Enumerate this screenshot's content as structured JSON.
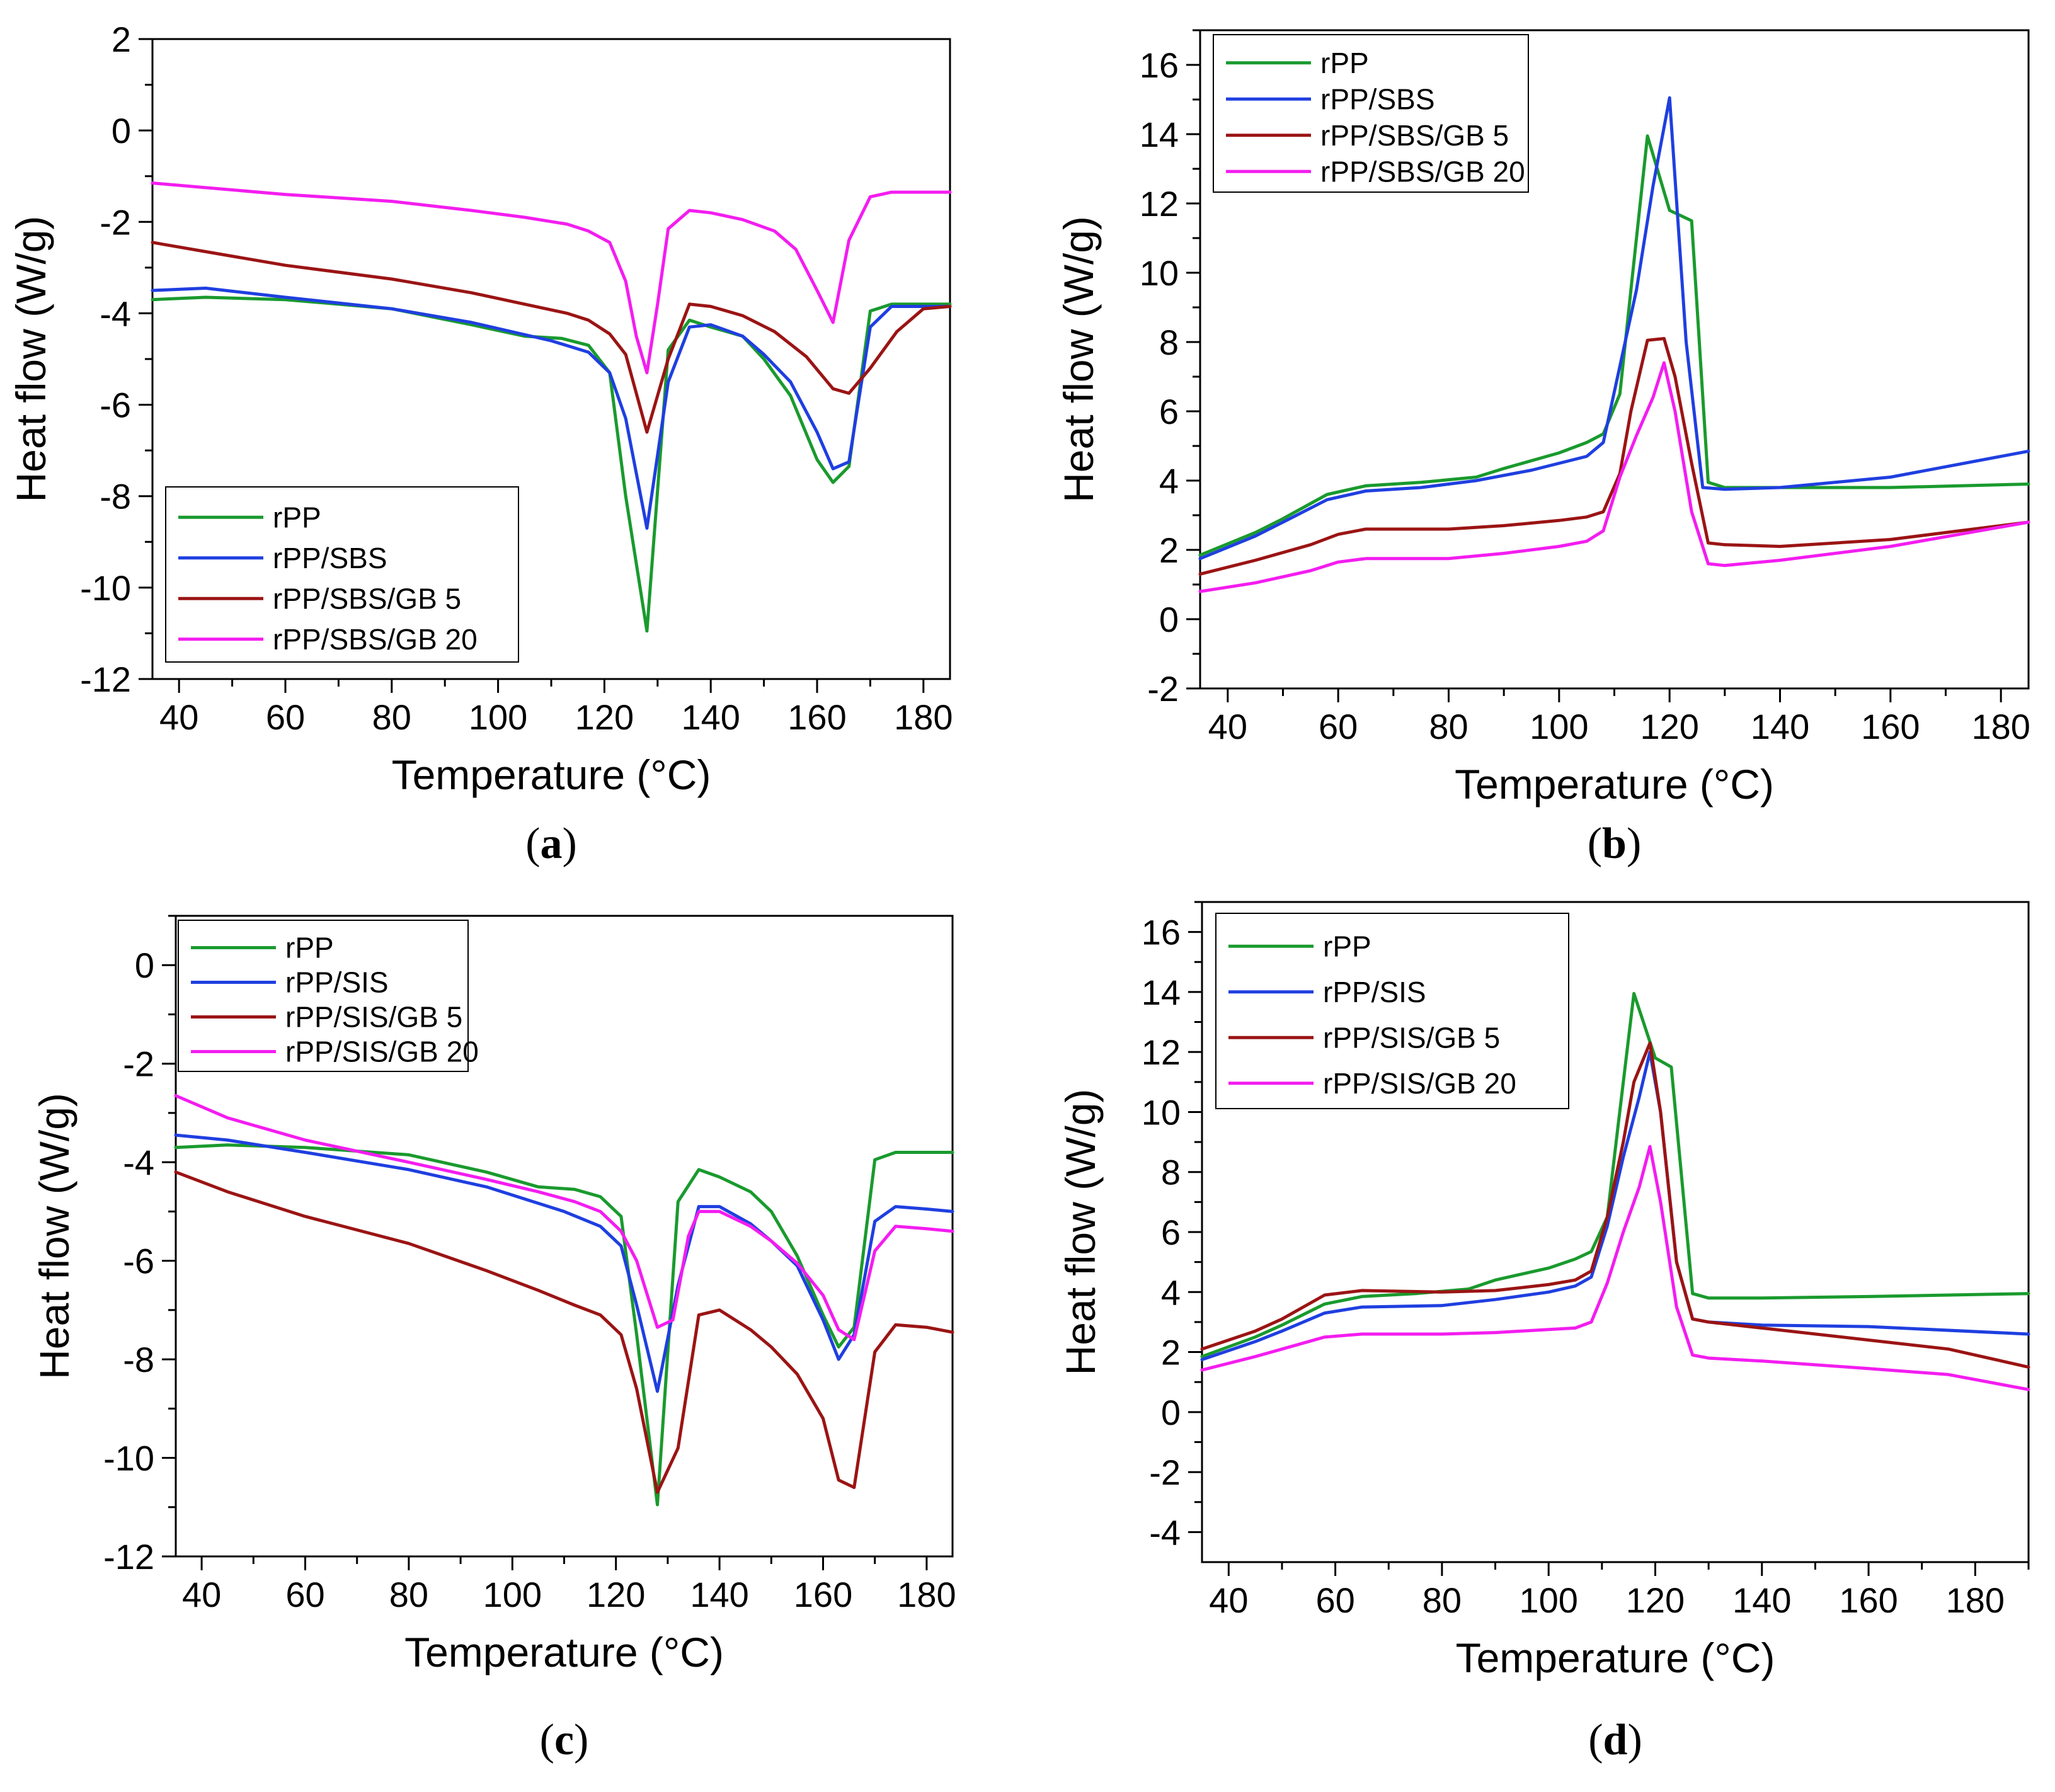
{
  "colors": {
    "green": "#1a9a2e",
    "blue": "#1f3fe0",
    "darkred": "#9b1414",
    "magenta": "#f31df0"
  },
  "chart_data": [
    {
      "type": "line",
      "panel_label": "a",
      "xlabel": "Temperature (°C)",
      "ylabel": "Heat flow (W/g)",
      "xlim": [
        35,
        185
      ],
      "ylim": [
        -12,
        2
      ],
      "xticks": [
        40,
        60,
        80,
        100,
        120,
        140,
        160,
        180
      ],
      "yticks": [
        -12,
        -10,
        -8,
        -6,
        -4,
        -2,
        0,
        2
      ],
      "legend_position": "bottom-left",
      "series": [
        {
          "name": "rPP",
          "color": "green",
          "x": [
            35,
            45,
            60,
            80,
            95,
            105,
            112,
            117,
            121,
            124,
            128,
            132,
            136,
            140,
            146,
            150,
            155,
            160,
            163,
            166,
            170,
            174,
            180,
            185
          ],
          "y": [
            -3.7,
            -3.65,
            -3.7,
            -3.9,
            -4.25,
            -4.5,
            -4.55,
            -4.7,
            -5.3,
            -8.0,
            -10.95,
            -4.8,
            -4.15,
            -4.3,
            -4.5,
            -5.0,
            -5.8,
            -7.2,
            -7.7,
            -7.35,
            -3.95,
            -3.8,
            -3.8,
            -3.8
          ]
        },
        {
          "name": "rPP/SBS",
          "color": "blue",
          "x": [
            35,
            45,
            60,
            80,
            95,
            110,
            117,
            121,
            124,
            128,
            132,
            136,
            140,
            146,
            150,
            155,
            160,
            163,
            166,
            170,
            174,
            180,
            185
          ],
          "y": [
            -3.5,
            -3.45,
            -3.65,
            -3.9,
            -4.2,
            -4.6,
            -4.85,
            -5.3,
            -6.3,
            -8.7,
            -5.5,
            -4.3,
            -4.25,
            -4.5,
            -4.9,
            -5.5,
            -6.6,
            -7.4,
            -7.25,
            -4.3,
            -3.85,
            -3.85,
            -3.85
          ]
        },
        {
          "name": "rPP/SBS/GB 5",
          "color": "darkred",
          "x": [
            35,
            45,
            60,
            80,
            95,
            105,
            113,
            117,
            121,
            124,
            128,
            132,
            136,
            140,
            146,
            152,
            158,
            163,
            166,
            170,
            175,
            180,
            185
          ],
          "y": [
            -2.45,
            -2.65,
            -2.95,
            -3.25,
            -3.55,
            -3.8,
            -4.0,
            -4.15,
            -4.45,
            -4.9,
            -6.6,
            -5.0,
            -3.8,
            -3.85,
            -4.05,
            -4.4,
            -4.95,
            -5.65,
            -5.75,
            -5.2,
            -4.4,
            -3.9,
            -3.85
          ]
        },
        {
          "name": "rPP/SBS/GB 20",
          "color": "magenta",
          "x": [
            35,
            45,
            60,
            80,
            95,
            105,
            113,
            117,
            121,
            124,
            126,
            128,
            130,
            132,
            136,
            140,
            146,
            152,
            156,
            160,
            163,
            166,
            170,
            174,
            180,
            185
          ],
          "y": [
            -1.15,
            -1.25,
            -1.4,
            -1.55,
            -1.75,
            -1.9,
            -2.05,
            -2.2,
            -2.45,
            -3.3,
            -4.5,
            -5.3,
            -3.8,
            -2.15,
            -1.75,
            -1.8,
            -1.95,
            -2.2,
            -2.6,
            -3.5,
            -4.2,
            -2.4,
            -1.45,
            -1.35,
            -1.35,
            -1.35
          ]
        }
      ],
      "legend": [
        "rPP",
        "rPP/SBS",
        "rPP/SBS/GB 5",
        "rPP/SBS/GB 20"
      ]
    },
    {
      "type": "line",
      "panel_label": "b",
      "xlabel": "Temperature (°C)",
      "ylabel": "Heat flow (W/g)",
      "xlim": [
        35,
        185
      ],
      "ylim": [
        -2,
        17
      ],
      "xticks": [
        40,
        60,
        80,
        100,
        120,
        140,
        160,
        180
      ],
      "yticks": [
        -2,
        0,
        2,
        4,
        6,
        8,
        10,
        12,
        14,
        16
      ],
      "legend_position": "top-left",
      "series": [
        {
          "name": "rPP",
          "color": "green",
          "x": [
            35,
            45,
            50,
            58,
            65,
            75,
            85,
            90,
            100,
            105,
            108,
            111,
            113,
            116,
            120,
            124,
            127,
            130,
            140,
            160,
            185
          ],
          "y": [
            1.85,
            2.5,
            2.9,
            3.6,
            3.85,
            3.95,
            4.1,
            4.35,
            4.8,
            5.1,
            5.35,
            6.5,
            9.5,
            13.95,
            11.8,
            11.5,
            3.95,
            3.8,
            3.8,
            3.8,
            3.9
          ]
        },
        {
          "name": "rPP/SBS",
          "color": "blue",
          "x": [
            35,
            45,
            50,
            58,
            65,
            75,
            85,
            95,
            105,
            108,
            111,
            114,
            117,
            120,
            123,
            126,
            130,
            140,
            160,
            185
          ],
          "y": [
            1.75,
            2.4,
            2.8,
            3.45,
            3.7,
            3.8,
            4.0,
            4.3,
            4.7,
            5.1,
            7.3,
            9.5,
            12.5,
            15.05,
            8.0,
            3.8,
            3.75,
            3.8,
            4.1,
            4.85
          ]
        },
        {
          "name": "rPP/SBS/GB 5",
          "color": "darkred",
          "x": [
            35,
            45,
            55,
            60,
            65,
            80,
            90,
            100,
            105,
            108,
            111,
            113,
            116,
            119,
            121,
            124,
            127,
            130,
            140,
            160,
            185
          ],
          "y": [
            1.3,
            1.7,
            2.15,
            2.45,
            2.6,
            2.6,
            2.7,
            2.85,
            2.95,
            3.1,
            4.2,
            6.0,
            8.05,
            8.1,
            7.0,
            4.5,
            2.2,
            2.15,
            2.1,
            2.3,
            2.8
          ]
        },
        {
          "name": "rPP/SBS/GB 20",
          "color": "magenta",
          "x": [
            35,
            45,
            55,
            60,
            65,
            80,
            90,
            100,
            105,
            108,
            111,
            114,
            117,
            119,
            121,
            124,
            127,
            130,
            140,
            160,
            185
          ],
          "y": [
            0.8,
            1.05,
            1.4,
            1.65,
            1.75,
            1.75,
            1.9,
            2.1,
            2.25,
            2.55,
            4.1,
            5.3,
            6.4,
            7.4,
            6.0,
            3.1,
            1.6,
            1.55,
            1.7,
            2.1,
            2.8
          ]
        }
      ],
      "legend": [
        "rPP",
        "rPP/SBS",
        "rPP/SBS/GB 5",
        "rPP/SBS/GB 20"
      ]
    },
    {
      "type": "line",
      "panel_label": "c",
      "xlabel": "Temperature (°C)",
      "ylabel": "Heat flow (W/g)",
      "xlim": [
        35,
        185
      ],
      "ylim": [
        -12,
        1
      ],
      "xticks": [
        40,
        60,
        80,
        100,
        120,
        140,
        160,
        180
      ],
      "yticks": [
        -12,
        -10,
        -8,
        -6,
        -4,
        -2,
        0
      ],
      "legend_position": "top-left",
      "series": [
        {
          "name": "rPP",
          "color": "green",
          "x": [
            35,
            45,
            60,
            80,
            95,
            105,
            112,
            117,
            121,
            124,
            128,
            132,
            136,
            140,
            146,
            150,
            155,
            160,
            163,
            166,
            170,
            174,
            180,
            185
          ],
          "y": [
            -3.7,
            -3.65,
            -3.7,
            -3.85,
            -4.2,
            -4.5,
            -4.55,
            -4.7,
            -5.1,
            -7.5,
            -10.95,
            -4.8,
            -4.15,
            -4.3,
            -4.6,
            -5.0,
            -5.9,
            -7.1,
            -7.75,
            -7.35,
            -3.95,
            -3.8,
            -3.8,
            -3.8
          ]
        },
        {
          "name": "rPP/SIS",
          "color": "blue",
          "x": [
            35,
            45,
            60,
            80,
            95,
            110,
            117,
            121,
            124,
            128,
            132,
            136,
            140,
            146,
            150,
            155,
            160,
            163,
            166,
            170,
            174,
            180,
            185
          ],
          "y": [
            -3.45,
            -3.55,
            -3.8,
            -4.15,
            -4.5,
            -5.0,
            -5.3,
            -5.7,
            -6.9,
            -8.65,
            -6.5,
            -4.9,
            -4.9,
            -5.25,
            -5.6,
            -6.1,
            -7.2,
            -8.0,
            -7.5,
            -5.2,
            -4.9,
            -4.95,
            -5.0
          ]
        },
        {
          "name": "rPP/SIS/GB 5",
          "color": "darkred",
          "x": [
            35,
            45,
            60,
            80,
            95,
            105,
            112,
            117,
            121,
            124,
            128,
            132,
            136,
            140,
            146,
            150,
            155,
            160,
            163,
            166,
            170,
            174,
            180,
            185
          ],
          "y": [
            -4.2,
            -4.6,
            -5.1,
            -5.65,
            -6.2,
            -6.6,
            -6.9,
            -7.1,
            -7.5,
            -8.6,
            -10.7,
            -9.8,
            -7.1,
            -7.0,
            -7.4,
            -7.75,
            -8.3,
            -9.2,
            -10.45,
            -10.6,
            -7.85,
            -7.3,
            -7.35,
            -7.45
          ]
        },
        {
          "name": "rPP/SIS/GB 20",
          "color": "magenta",
          "x": [
            35,
            45,
            60,
            80,
            95,
            105,
            112,
            117,
            121,
            124,
            128,
            131,
            134,
            136,
            140,
            146,
            150,
            155,
            160,
            163,
            166,
            170,
            174,
            180,
            185
          ],
          "y": [
            -2.65,
            -3.1,
            -3.55,
            -4.0,
            -4.35,
            -4.6,
            -4.8,
            -5.0,
            -5.4,
            -6.0,
            -7.35,
            -7.2,
            -5.5,
            -5.0,
            -5.0,
            -5.3,
            -5.6,
            -6.05,
            -6.7,
            -7.4,
            -7.6,
            -5.8,
            -5.3,
            -5.35,
            -5.4
          ]
        }
      ],
      "legend": [
        "rPP",
        "rPP/SIS",
        "rPP/SIS/GB 5",
        "rPP/SIS/GB 20"
      ]
    },
    {
      "type": "line",
      "panel_label": "d",
      "xlabel": "Temperature (°C)",
      "ylabel": "Heat flow (W/g)",
      "xlim": [
        35,
        190
      ],
      "ylim": [
        -5,
        17
      ],
      "xticks": [
        40,
        60,
        80,
        100,
        120,
        140,
        160,
        180
      ],
      "yticks": [
        -4,
        -2,
        0,
        2,
        4,
        6,
        8,
        10,
        12,
        14,
        16
      ],
      "legend_position": "top-left",
      "series": [
        {
          "name": "rPP",
          "color": "green",
          "x": [
            35,
            45,
            50,
            58,
            65,
            75,
            85,
            90,
            100,
            105,
            108,
            111,
            113,
            116,
            120,
            123,
            127,
            130,
            140,
            160,
            190
          ],
          "y": [
            1.85,
            2.5,
            2.9,
            3.6,
            3.85,
            3.95,
            4.1,
            4.4,
            4.8,
            5.1,
            5.35,
            6.5,
            9.5,
            13.95,
            11.8,
            11.5,
            3.95,
            3.8,
            3.8,
            3.85,
            3.95
          ]
        },
        {
          "name": "rPP/SIS",
          "color": "blue",
          "x": [
            35,
            45,
            50,
            58,
            65,
            80,
            90,
            100,
            105,
            108,
            111,
            114,
            117,
            119,
            121,
            124,
            127,
            130,
            140,
            160,
            190
          ],
          "y": [
            1.75,
            2.35,
            2.7,
            3.3,
            3.5,
            3.55,
            3.75,
            4.0,
            4.2,
            4.5,
            6.2,
            8.5,
            10.5,
            12.0,
            10.0,
            5.0,
            3.1,
            3.0,
            2.9,
            2.85,
            2.6
          ]
        },
        {
          "name": "rPP/SIS/GB 5",
          "color": "darkred",
          "x": [
            35,
            45,
            50,
            58,
            65,
            80,
            90,
            100,
            105,
            108,
            111,
            114,
            116,
            119,
            121,
            124,
            127,
            130,
            140,
            160,
            175,
            190
          ],
          "y": [
            2.1,
            2.7,
            3.1,
            3.9,
            4.05,
            4.0,
            4.05,
            4.25,
            4.4,
            4.7,
            6.5,
            9.0,
            11.0,
            12.3,
            10.0,
            5.0,
            3.1,
            3.0,
            2.8,
            2.4,
            2.1,
            1.5
          ]
        },
        {
          "name": "rPP/SIS/GB 20",
          "color": "magenta",
          "x": [
            35,
            45,
            50,
            58,
            65,
            80,
            90,
            100,
            105,
            108,
            111,
            114,
            117,
            119,
            121,
            124,
            127,
            130,
            140,
            160,
            175,
            190
          ],
          "y": [
            1.4,
            1.85,
            2.1,
            2.5,
            2.6,
            2.6,
            2.65,
            2.75,
            2.8,
            3.0,
            4.3,
            6.0,
            7.5,
            8.85,
            7.0,
            3.5,
            1.9,
            1.8,
            1.7,
            1.45,
            1.25,
            0.75
          ]
        }
      ],
      "legend": [
        "rPP",
        "rPP/SIS",
        "rPP/SIS/GB 5",
        "rPP/SIS/GB 20"
      ]
    }
  ]
}
